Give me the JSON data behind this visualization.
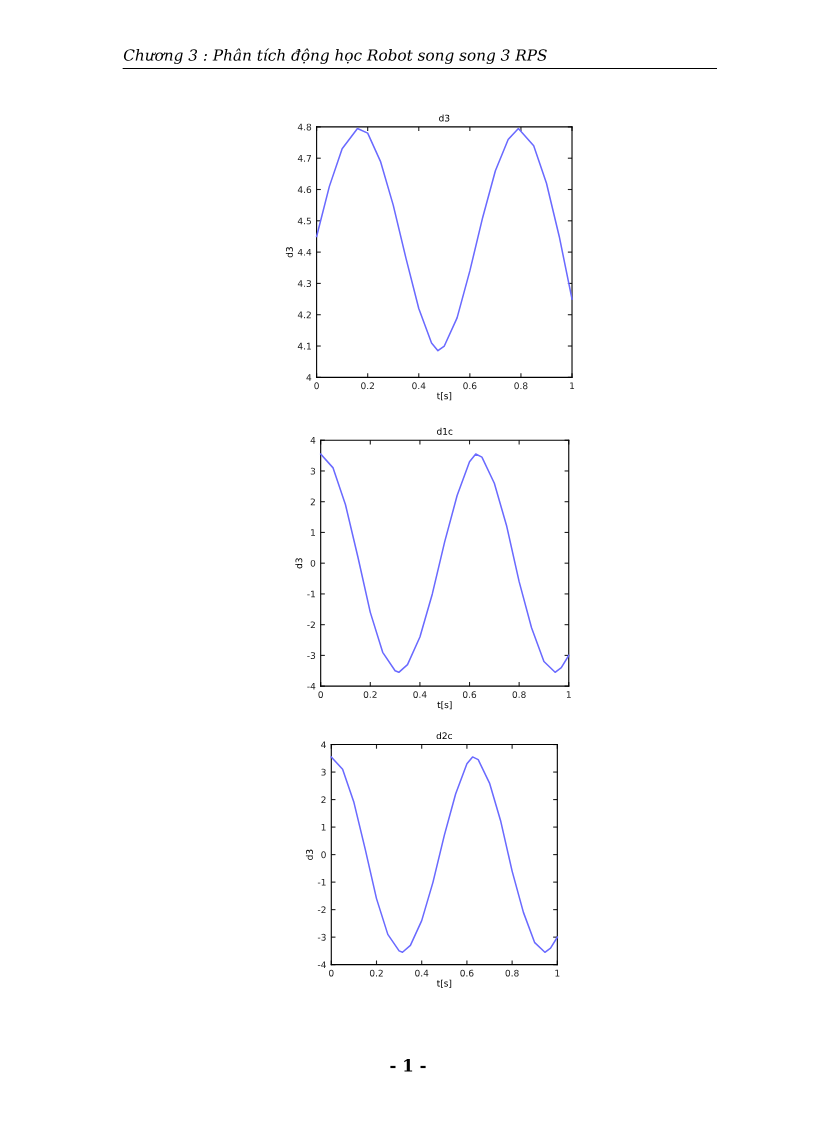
{
  "chart_data": [
    {
      "type": "line",
      "title": "d3",
      "xlabel": "t[s]",
      "ylabel": "d3",
      "annotations": [
        "Chương 3 : Phân tích động học Robot song song 3 RPS"
      ],
      "xlim": [
        0,
        1
      ],
      "ylim": [
        4,
        4.8
      ],
      "xticks": [
        0,
        0.2,
        0.4,
        0.6,
        0.8,
        1
      ],
      "yticks": [
        4,
        4.1,
        4.2,
        4.3,
        4.4,
        4.5,
        4.6,
        4.7,
        4.8
      ],
      "series": [
        {
          "color": "#6a6aff",
          "x": [
            0,
            0.05,
            0.1,
            0.16,
            0.2,
            0.25,
            0.3,
            0.35,
            0.4,
            0.45,
            0.475,
            0.5,
            0.55,
            0.6,
            0.65,
            0.7,
            0.75,
            0.79,
            0.85,
            0.9,
            0.95,
            1.0
          ],
          "values": [
            4.45,
            4.61,
            4.73,
            4.795,
            4.78,
            4.69,
            4.55,
            4.38,
            4.22,
            4.11,
            4.085,
            4.1,
            4.19,
            4.34,
            4.51,
            4.66,
            4.76,
            4.795,
            4.74,
            4.62,
            4.45,
            4.25
          ]
        }
      ]
    },
    {
      "type": "line",
      "title": "d1c",
      "xlabel": "t[s]",
      "ylabel": "d3",
      "xlim": [
        0,
        1
      ],
      "ylim": [
        -4,
        4
      ],
      "xticks": [
        0,
        0.2,
        0.4,
        0.6,
        0.8,
        1
      ],
      "yticks": [
        -4,
        -3,
        -2,
        -1,
        0,
        1,
        2,
        3,
        4
      ],
      "series": [
        {
          "color": "#6a6aff",
          "x": [
            0,
            0.05,
            0.1,
            0.15,
            0.2,
            0.25,
            0.3,
            0.315,
            0.35,
            0.4,
            0.45,
            0.5,
            0.55,
            0.6,
            0.625,
            0.65,
            0.7,
            0.75,
            0.8,
            0.85,
            0.9,
            0.945,
            0.97,
            1.0
          ],
          "values": [
            3.55,
            3.1,
            1.9,
            0.2,
            -1.6,
            -2.9,
            -3.5,
            -3.55,
            -3.3,
            -2.4,
            -1.0,
            0.7,
            2.2,
            3.3,
            3.55,
            3.45,
            2.6,
            1.2,
            -0.6,
            -2.1,
            -3.2,
            -3.55,
            -3.4,
            -3.0
          ]
        }
      ]
    },
    {
      "type": "line",
      "title": "d2c",
      "xlabel": "t[s]",
      "ylabel": "d3",
      "annotations": [
        "- 1 -"
      ],
      "xlim": [
        0,
        1
      ],
      "ylim": [
        -4,
        4
      ],
      "xticks": [
        0,
        0.2,
        0.4,
        0.6,
        0.8,
        1
      ],
      "yticks": [
        -4,
        -3,
        -2,
        -1,
        0,
        1,
        2,
        3,
        4
      ],
      "series": [
        {
          "color": "#6a6aff",
          "x": [
            0,
            0.05,
            0.1,
            0.15,
            0.2,
            0.25,
            0.3,
            0.315,
            0.35,
            0.4,
            0.45,
            0.5,
            0.55,
            0.6,
            0.625,
            0.65,
            0.7,
            0.75,
            0.8,
            0.85,
            0.9,
            0.945,
            0.97,
            1.0
          ],
          "values": [
            3.55,
            3.1,
            1.9,
            0.2,
            -1.6,
            -2.9,
            -3.5,
            -3.55,
            -3.3,
            -2.4,
            -1.0,
            0.7,
            2.2,
            3.3,
            3.55,
            3.45,
            2.6,
            1.2,
            -0.6,
            -2.1,
            -3.2,
            -3.55,
            -3.4,
            -3.0
          ]
        }
      ]
    }
  ]
}
